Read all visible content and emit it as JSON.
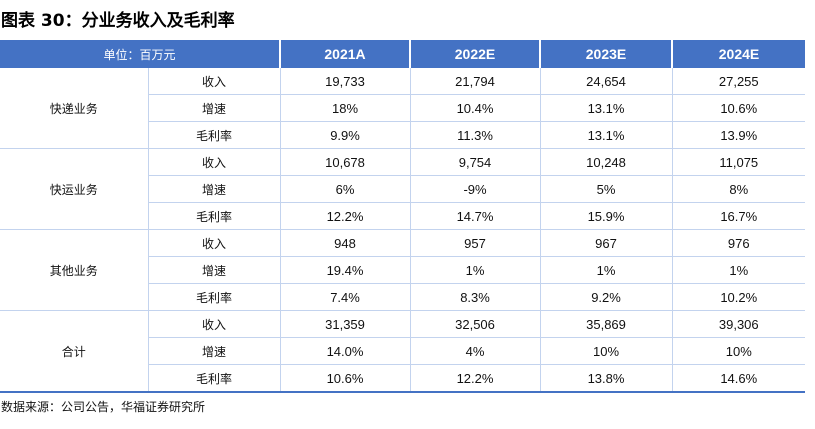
{
  "title": "图表 30：分业务收入及毛利率",
  "table": {
    "unit_label": "单位：百万元",
    "years": [
      "2021A",
      "2022E",
      "2023E",
      "2024E"
    ],
    "segments": [
      {
        "name": "快递业务",
        "rows": [
          {
            "metric": "收入",
            "values": [
              "19,733",
              "21,794",
              "24,654",
              "27,255"
            ]
          },
          {
            "metric": "增速",
            "values": [
              "18%",
              "10.4%",
              "13.1%",
              "10.6%"
            ]
          },
          {
            "metric": "毛利率",
            "values": [
              "9.9%",
              "11.3%",
              "13.1%",
              "13.9%"
            ]
          }
        ]
      },
      {
        "name": "快运业务",
        "rows": [
          {
            "metric": "收入",
            "values": [
              "10,678",
              "9,754",
              "10,248",
              "11,075"
            ]
          },
          {
            "metric": "增速",
            "values": [
              "6%",
              "-9%",
              "5%",
              "8%"
            ]
          },
          {
            "metric": "毛利率",
            "values": [
              "12.2%",
              "14.7%",
              "15.9%",
              "16.7%"
            ]
          }
        ]
      },
      {
        "name": "其他业务",
        "rows": [
          {
            "metric": "收入",
            "values": [
              "948",
              "957",
              "967",
              "976"
            ]
          },
          {
            "metric": "增速",
            "values": [
              "19.4%",
              "1%",
              "1%",
              "1%"
            ]
          },
          {
            "metric": "毛利率",
            "values": [
              "7.4%",
              "8.3%",
              "9.2%",
              "10.2%"
            ]
          }
        ]
      },
      {
        "name": "合计",
        "rows": [
          {
            "metric": "收入",
            "values": [
              "31,359",
              "32,506",
              "35,869",
              "39,306"
            ]
          },
          {
            "metric": "增速",
            "values": [
              "14.0%",
              "4%",
              "10%",
              "10%"
            ]
          },
          {
            "metric": "毛利率",
            "values": [
              "10.6%",
              "12.2%",
              "13.8%",
              "14.6%"
            ]
          }
        ]
      }
    ]
  },
  "source": "数据来源：公司公告，华福证券研究所",
  "colors": {
    "header_background": "#4472c4",
    "grid_line": "#c3d3ee",
    "bottom_rule": "#4472c4"
  }
}
